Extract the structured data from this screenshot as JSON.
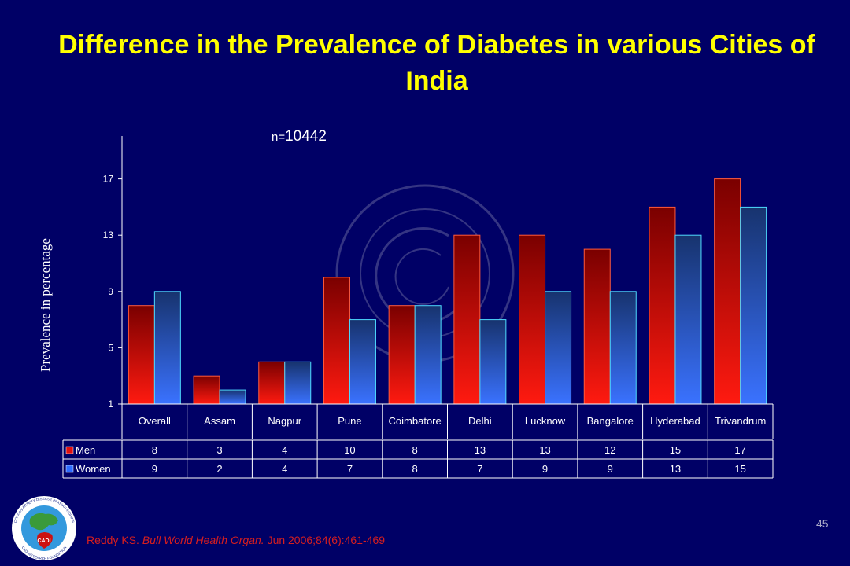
{
  "slide": {
    "title": "Difference in the Prevalence of Diabetes in various Cities of India",
    "n_prefix": "n=",
    "n_value": "10442",
    "page_number": "45",
    "citation": {
      "author": "Reddy KS.",
      "journal": "Bull World Health Organ.",
      "details": "Jun 2006;84(6):461-469"
    },
    "logo": {
      "name": "CADI Research Foundation logo",
      "text_top": "COronary ARTERY DISEASE IN ASIAN INDIANS",
      "text_bottom": "CADI RESEARCH FOUNDATION",
      "center": "CADI"
    }
  },
  "colors": {
    "background": "#000066",
    "title": "#ffff00",
    "men": "#e01010",
    "women": "#2f6dff",
    "citation": "#d81e1e"
  },
  "chart_data": {
    "type": "bar",
    "title": "Difference in the Prevalence of Diabetes in various Cities of India",
    "xlabel": "",
    "ylabel": "Prevalence in percentage",
    "ylim": [
      1,
      20
    ],
    "yticks": [
      1,
      5,
      9,
      13,
      17
    ],
    "grid": false,
    "annotation": "n=10442",
    "legend_position": "data-table-left",
    "categories": [
      "Overall",
      "Assam",
      "Nagpur",
      "Pune",
      "Coimbatore",
      "Delhi",
      "Lucknow",
      "Bangalore",
      "Hyderabad",
      "Trivandrum"
    ],
    "series": [
      {
        "name": "Men",
        "values": [
          8,
          3,
          4,
          10,
          8,
          13,
          13,
          12,
          15,
          17
        ]
      },
      {
        "name": "Women",
        "values": [
          9,
          2,
          4,
          7,
          8,
          7,
          9,
          9,
          13,
          15
        ]
      }
    ]
  }
}
